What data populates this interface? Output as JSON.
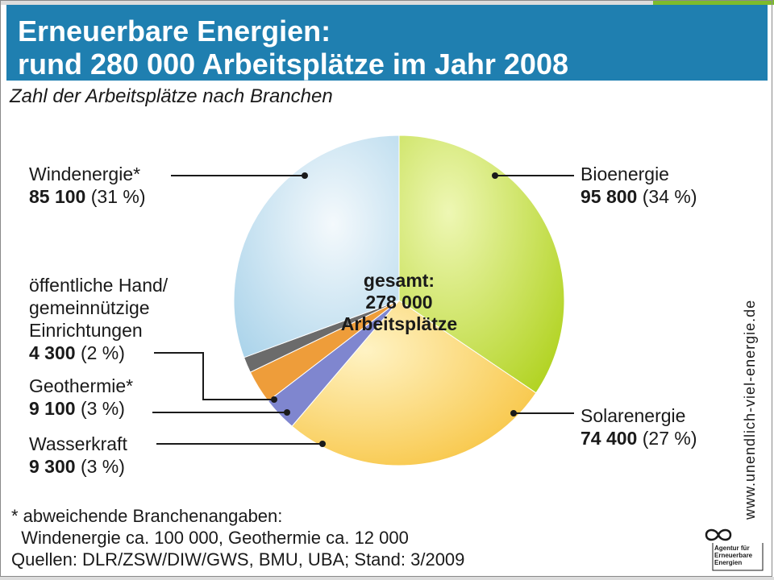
{
  "header": {
    "title_line1": "Erneuerbare Energien:",
    "title_line2": "rund 280 000 Arbeitsplätze im Jahr 2008",
    "subtitle": "Zahl der Arbeitsplätze nach Branchen"
  },
  "center": {
    "line1": "gesamt:",
    "line2": "278 000",
    "line3": "Arbeitsplätze"
  },
  "labels": {
    "wind_name": "Windenergie*",
    "wind_value": "85 100",
    "wind_pct": "(31 %)",
    "oeff_line1": "öffentliche Hand/",
    "oeff_line2": "gemeinnützige",
    "oeff_line3": "Einrichtungen",
    "oeff_value": "4 300",
    "oeff_pct": "(2 %)",
    "geo_name": "Geothermie*",
    "geo_value": "9 100",
    "geo_pct": "(3 %)",
    "wasser_name": "Wasserkraft",
    "wasser_value": "9 300",
    "wasser_pct": "(3 %)",
    "bio_name": "Bioenergie",
    "bio_value": "95 800",
    "bio_pct": "(34 %)",
    "solar_name": "Solarenergie",
    "solar_value": "74 400",
    "solar_pct": "(27 %)"
  },
  "footnote": {
    "line1": "* abweichende Branchenangaben:",
    "line2": "  Windenergie ca. 100 000, Geothermie ca. 12 000",
    "line3": "Quellen: DLR/ZSW/DIW/GWS, BMU, UBA; Stand: 3/2009"
  },
  "side_url": "www.unendlich-viel-energie.de",
  "logo_text": [
    "Agentur für",
    "Erneuerbare",
    "Energien"
  ],
  "chart_data": {
    "type": "pie",
    "title": "Erneuerbare Energien: rund 280 000 Arbeitsplätze im Jahr 2008",
    "subtitle": "Zahl der Arbeitsplätze nach Branchen",
    "total": 278000,
    "slices": [
      {
        "label": "Bioenergie",
        "value": 95800,
        "percent": 34,
        "color": "#b9d92a"
      },
      {
        "label": "Solarenergie",
        "value": 74400,
        "percent": 27,
        "color": "#f8c84a"
      },
      {
        "label": "Wasserkraft",
        "value": 9300,
        "percent": 3,
        "color": "#7f86cf"
      },
      {
        "label": "Geothermie*",
        "value": 9100,
        "percent": 3,
        "color": "#ee9d3a"
      },
      {
        "label": "öffentliche Hand/ gemeinnützige Einrichtungen",
        "value": 4300,
        "percent": 2,
        "color": "#6b6b6b"
      },
      {
        "label": "Windenergie*",
        "value": 85100,
        "percent": 31,
        "color": "#a9d3ea"
      }
    ],
    "legend": "labels beside slices"
  }
}
